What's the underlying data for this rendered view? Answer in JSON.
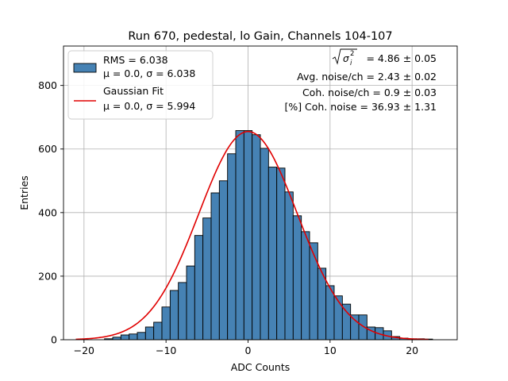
{
  "chart_data": {
    "type": "bar",
    "title": "Run 670, pedestal, lo Gain, Channels 104-107",
    "xlabel": "ADC Counts",
    "ylabel": "Entries",
    "xlim": [
      -22.5,
      25.5
    ],
    "ylim": [
      0,
      924
    ],
    "x_ticks": [
      -20,
      -10,
      0,
      10,
      20
    ],
    "y_ticks": [
      0,
      200,
      400,
      600,
      800
    ],
    "x_tick_labels": [
      "−20",
      "−10",
      "0",
      "10",
      "20"
    ],
    "y_tick_labels": [
      "0",
      "200",
      "400",
      "600",
      "800"
    ],
    "grid": true,
    "bin_width": 1,
    "bins": [
      {
        "x": -21,
        "count": 0
      },
      {
        "x": -20,
        "count": 0
      },
      {
        "x": -19,
        "count": 0
      },
      {
        "x": -18,
        "count": 0
      },
      {
        "x": -17,
        "count": 3
      },
      {
        "x": -16,
        "count": 8
      },
      {
        "x": -15,
        "count": 15
      },
      {
        "x": -14,
        "count": 18
      },
      {
        "x": -13,
        "count": 23
      },
      {
        "x": -12,
        "count": 40
      },
      {
        "x": -11,
        "count": 55
      },
      {
        "x": -10,
        "count": 103
      },
      {
        "x": -9,
        "count": 155
      },
      {
        "x": -8,
        "count": 180
      },
      {
        "x": -7,
        "count": 232
      },
      {
        "x": -6,
        "count": 328
      },
      {
        "x": -5,
        "count": 383
      },
      {
        "x": -4,
        "count": 462
      },
      {
        "x": -3,
        "count": 500
      },
      {
        "x": -2,
        "count": 585
      },
      {
        "x": -1,
        "count": 658
      },
      {
        "x": 0,
        "count": 658
      },
      {
        "x": 1,
        "count": 645
      },
      {
        "x": 2,
        "count": 602
      },
      {
        "x": 3,
        "count": 543
      },
      {
        "x": 4,
        "count": 540
      },
      {
        "x": 5,
        "count": 465
      },
      {
        "x": 6,
        "count": 390
      },
      {
        "x": 7,
        "count": 340
      },
      {
        "x": 8,
        "count": 305
      },
      {
        "x": 9,
        "count": 225
      },
      {
        "x": 10,
        "count": 170
      },
      {
        "x": 11,
        "count": 138
      },
      {
        "x": 12,
        "count": 112
      },
      {
        "x": 13,
        "count": 78
      },
      {
        "x": 14,
        "count": 78
      },
      {
        "x": 15,
        "count": 40
      },
      {
        "x": 16,
        "count": 38
      },
      {
        "x": 17,
        "count": 28
      },
      {
        "x": 18,
        "count": 10
      },
      {
        "x": 19,
        "count": 5
      },
      {
        "x": 20,
        "count": 3
      },
      {
        "x": 21,
        "count": 3
      },
      {
        "x": 22,
        "count": 2
      }
    ],
    "bar_color": "#4682b4",
    "bar_edge_color": "#000000",
    "fit": {
      "type": "gaussian",
      "mu": 0.0,
      "sigma": 5.994,
      "amplitude": 655,
      "x_range": [
        -21,
        22
      ],
      "color": "#e00000"
    },
    "legend": {
      "position": "top-left",
      "entries": [
        {
          "kind": "patch",
          "line1": "RMS = 6.038",
          "line2": "μ = 0.0, σ = 6.038"
        },
        {
          "kind": "line",
          "line1": "Gaussian Fit",
          "line2": "μ = 0.0, σ = 5.994"
        }
      ]
    },
    "annotations": {
      "position": "top-right",
      "sqrt_line_value": " = 4.86 ± 0.05",
      "lines": [
        "Avg. noise/ch = 2.43 ± 0.02",
        "Coh. noise/ch = 0.9 ± 0.03",
        "[%] Coh. noise = 36.93 ± 1.31"
      ]
    }
  }
}
